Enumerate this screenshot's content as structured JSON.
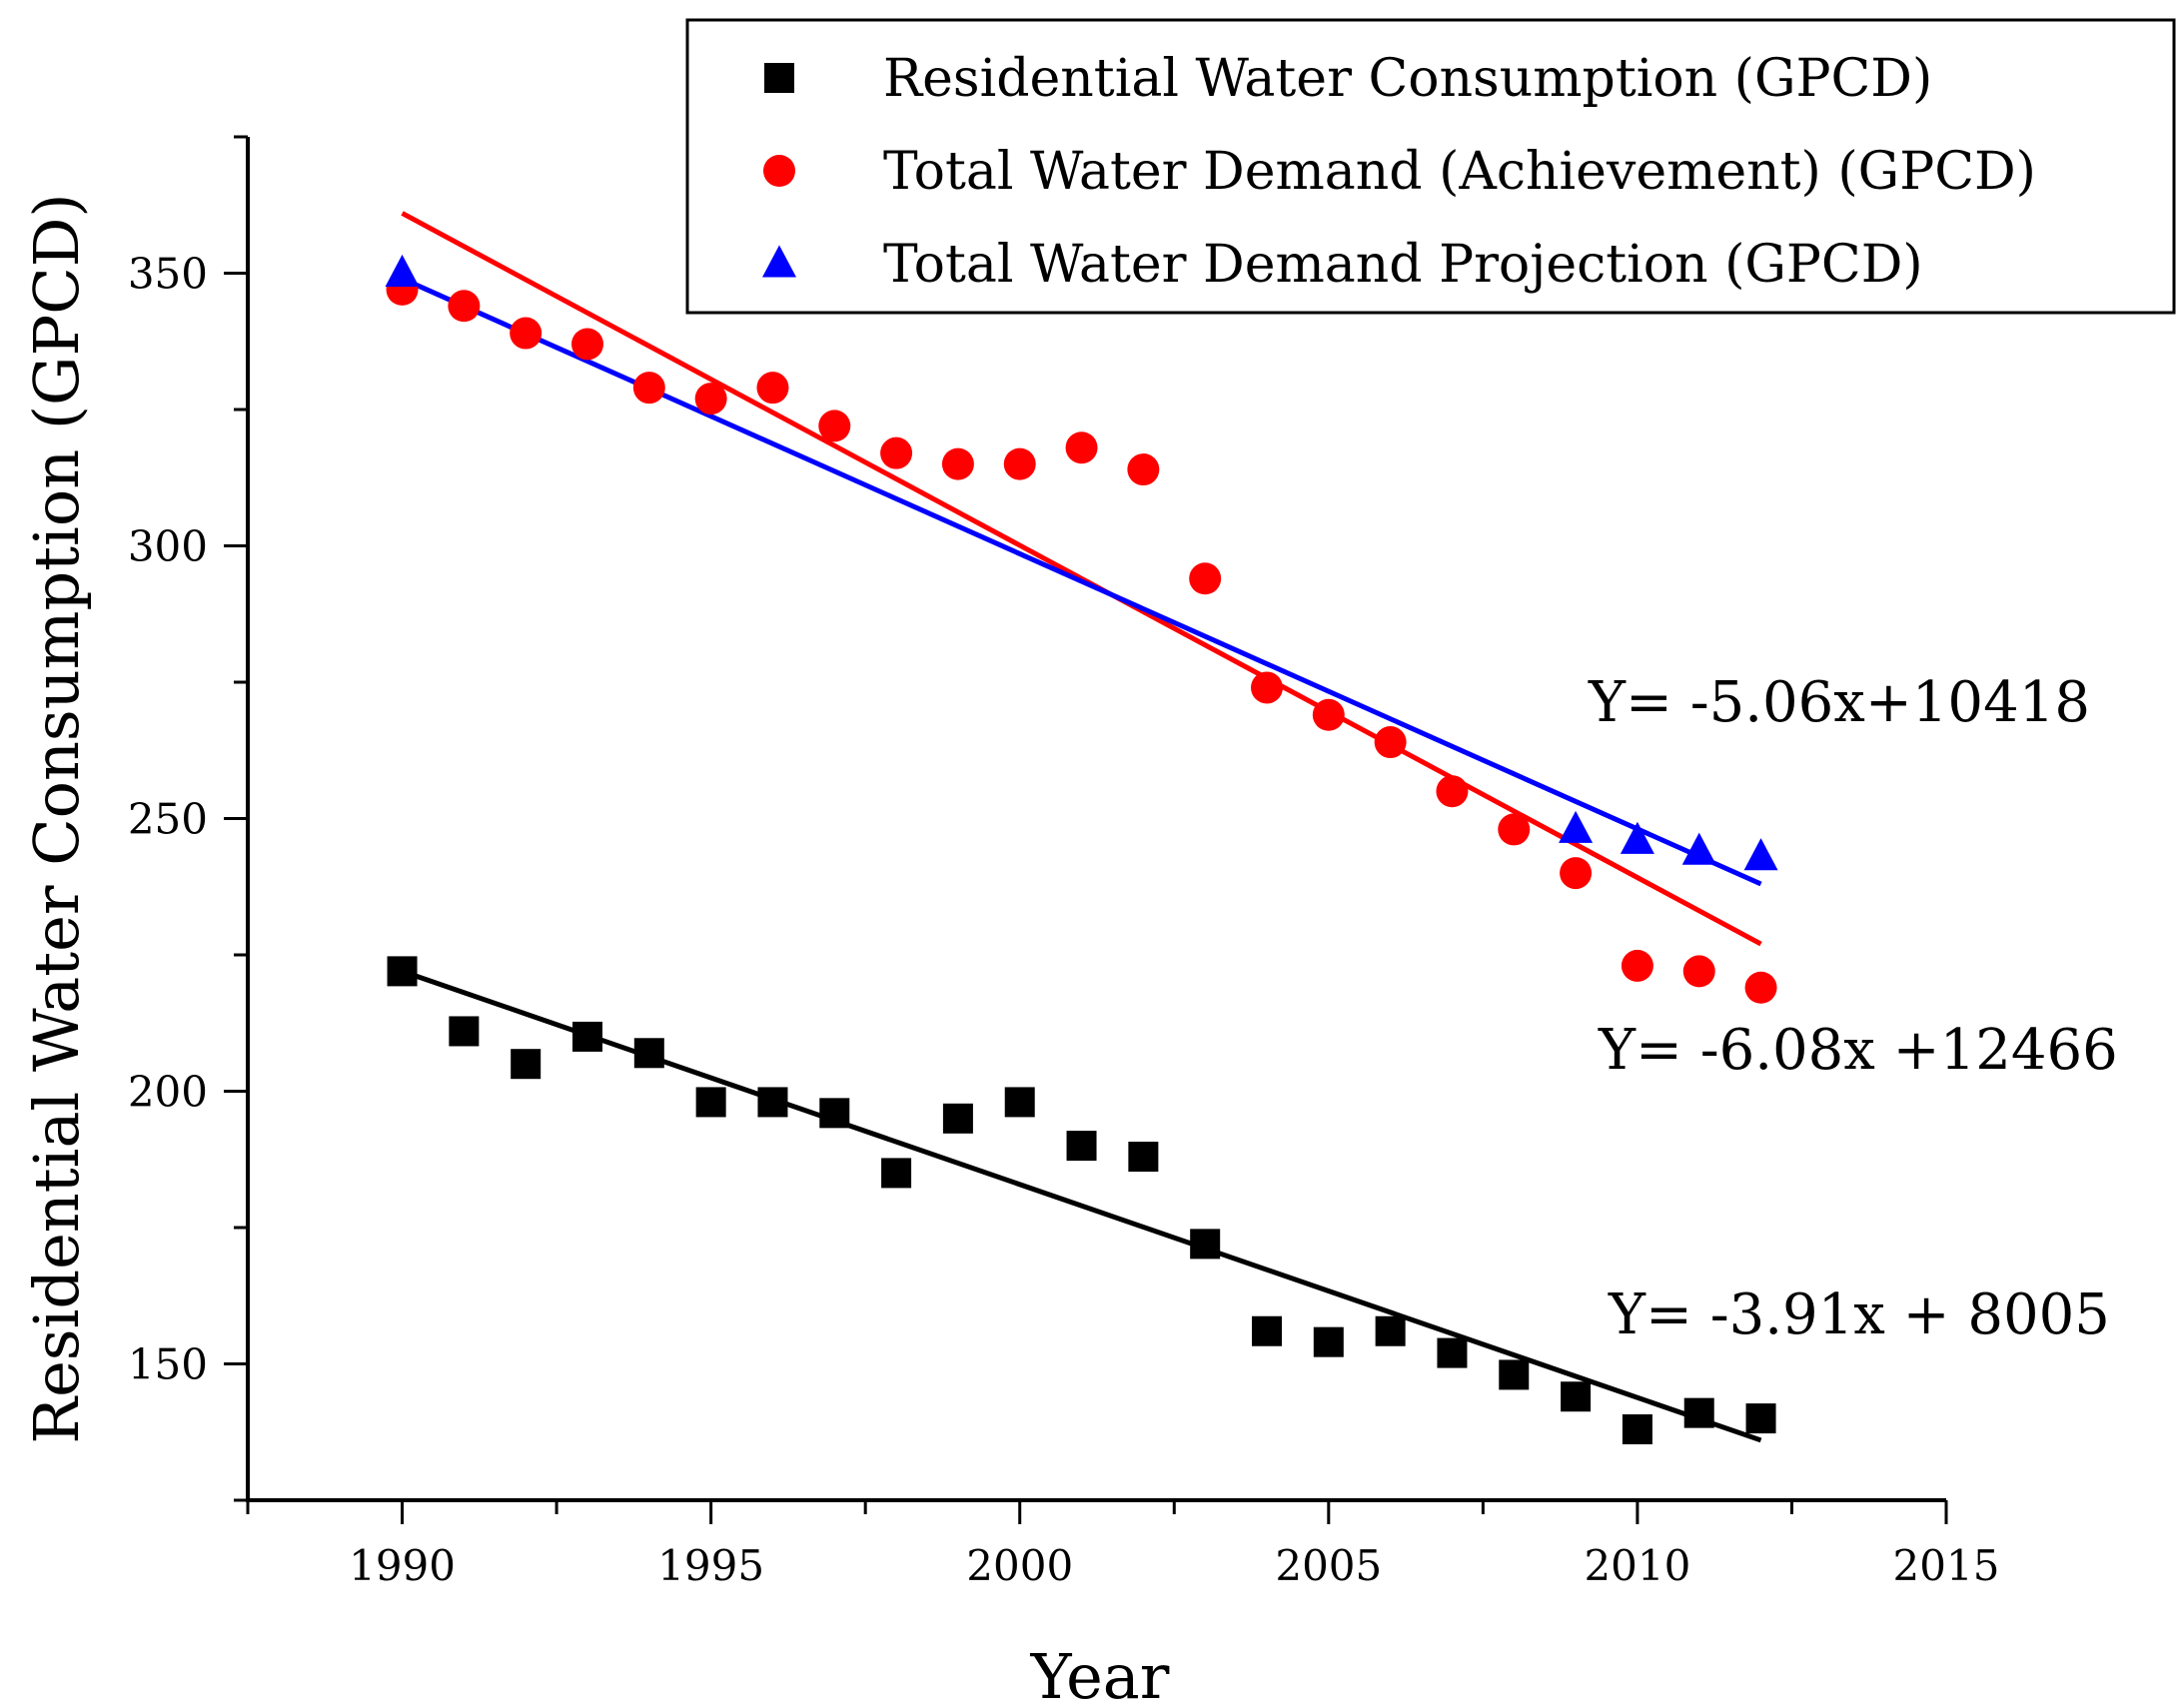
{
  "chart_data": {
    "type": "scatter",
    "xlabel": "Year",
    "ylabel": "Residential Water Consumption (GPCD)",
    "xlim": [
      1987.5,
      2015
    ],
    "ylim": [
      125,
      375
    ],
    "x_ticks": [
      1990,
      1995,
      2000,
      2005,
      2010,
      2015
    ],
    "y_ticks": [
      150,
      200,
      250,
      300,
      350
    ],
    "grid": false,
    "legend_position": "top-right",
    "series": [
      {
        "name": "Residential Water Consumption (GPCD)",
        "color": "#000000",
        "marker": "square",
        "x": [
          1990,
          1991,
          1992,
          1993,
          1994,
          1995,
          1996,
          1997,
          1998,
          1999,
          2000,
          2001,
          2002,
          2003,
          2004,
          2005,
          2006,
          2007,
          2008,
          2009,
          2010,
          2011,
          2012
        ],
        "y": [
          222,
          211,
          205,
          210,
          207,
          198,
          198,
          196,
          185,
          195,
          198,
          190,
          188,
          172,
          156,
          154,
          156,
          152,
          148,
          144,
          138,
          141,
          140
        ],
        "trend": {
          "x": [
            1990,
            2012
          ],
          "y": [
            222,
            136
          ]
        },
        "equation": "Y= -3.91x + 8005"
      },
      {
        "name": "Total Water Demand (Achievement) (GPCD)",
        "color": "#ff0000",
        "marker": "circle",
        "x": [
          1990,
          1991,
          1992,
          1993,
          1994,
          1995,
          1996,
          1997,
          1998,
          1999,
          2000,
          2001,
          2002,
          2003,
          2004,
          2005,
          2006,
          2007,
          2008,
          2009,
          2010,
          2011,
          2012
        ],
        "y": [
          347,
          344,
          339,
          337,
          329,
          327,
          329,
          322,
          317,
          315,
          315,
          318,
          314,
          294,
          274,
          269,
          264,
          255,
          248,
          240,
          223,
          222,
          219
        ],
        "trend": {
          "x": [
            1990,
            2012
          ],
          "y": [
            361,
            227
          ]
        },
        "equation": "Y= -6.08x +12466"
      },
      {
        "name": "Total Water Demand Projection (GPCD)",
        "color": "#0000ff",
        "marker": "triangle",
        "x": [
          1990,
          2009,
          2010,
          2011,
          2012
        ],
        "y": [
          350,
          248,
          246,
          244,
          243
        ],
        "trend": {
          "x": [
            1990,
            2012
          ],
          "y": [
            349,
            238
          ]
        },
        "equation": "Y= -5.06x+10418"
      }
    ]
  }
}
